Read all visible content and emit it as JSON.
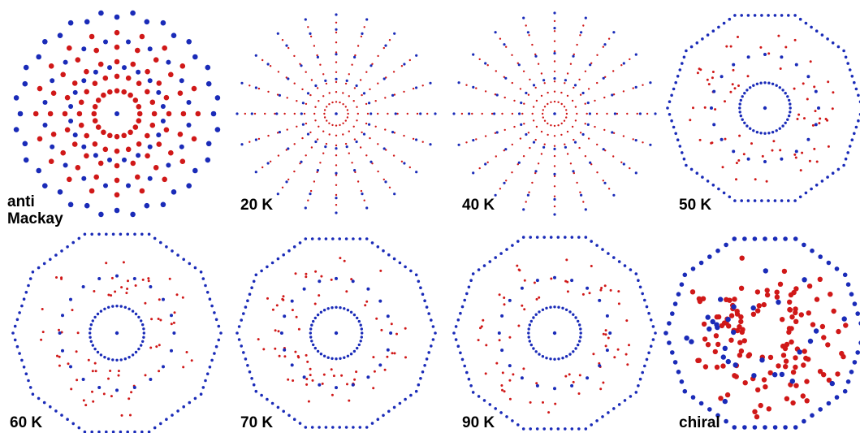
{
  "colors": {
    "outer_atoms": "#1a2bb8",
    "inner_atoms": "#d01818",
    "background": "#ffffff"
  },
  "panels": [
    {
      "id": "anti-mackay",
      "label": "anti\nMackay",
      "style": "anti-mackay"
    },
    {
      "id": "20k",
      "label": "20 K",
      "style": "sparse"
    },
    {
      "id": "40k",
      "label": "40 K",
      "style": "sparse"
    },
    {
      "id": "50k",
      "label": "50 K",
      "style": "ring"
    },
    {
      "id": "60k",
      "label": "60 K",
      "style": "ring"
    },
    {
      "id": "70k",
      "label": "70 K",
      "style": "ring"
    },
    {
      "id": "90k",
      "label": "90 K",
      "style": "ring"
    },
    {
      "id": "chiral",
      "label": "chiral",
      "style": "chiral"
    }
  ]
}
